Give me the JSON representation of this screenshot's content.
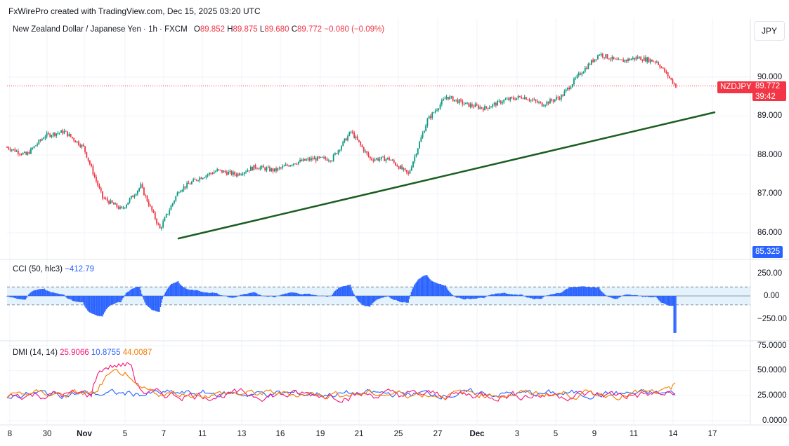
{
  "header": {
    "attribution": "FxWirePro created with TradingView.com, Dec 15, 2025 03:20 UTC"
  },
  "legend": {
    "title": "New Zealand Dollar / Japanese Yen · 1h · FXCM",
    "o_label": "O",
    "o_value": "89.852",
    "h_label": "H",
    "h_value": "89.875",
    "l_label": "L",
    "l_value": "89.680",
    "c_label": "C",
    "c_value": "89.772",
    "change": "−0.080 (−0.09%)"
  },
  "currency": "JPY",
  "price_tags": {
    "symbol": "NZDJPY",
    "last": "89.772",
    "countdown": "39:42",
    "low_marker": "85.325"
  },
  "cci": {
    "label": "CCI (50, hlc3)",
    "value": "−412.79",
    "ticks": [
      "250.00",
      "0.00",
      "−250.00"
    ]
  },
  "dmi": {
    "label": "DMI (14, 14)",
    "plus_di": "25.9066",
    "minus_di": "10.8755",
    "adx": "44.0087",
    "ticks": [
      "75.0000",
      "50.0000",
      "25.0000",
      "0.0000"
    ]
  },
  "price_ticks": [
    "90.000",
    "89.000",
    "88.000",
    "87.000",
    "86.000"
  ],
  "x_ticks": [
    {
      "label": "8"
    },
    {
      "label": "30"
    },
    {
      "label": "Nov",
      "bold": true
    },
    {
      "label": "5"
    },
    {
      "label": "7"
    },
    {
      "label": "11"
    },
    {
      "label": "13"
    },
    {
      "label": "16"
    },
    {
      "label": "19"
    },
    {
      "label": "21"
    },
    {
      "label": "25"
    },
    {
      "label": "27"
    },
    {
      "label": "Dec",
      "bold": true
    },
    {
      "label": "3"
    },
    {
      "label": "5"
    },
    {
      "label": "9"
    },
    {
      "label": "11"
    },
    {
      "label": "14"
    },
    {
      "label": "17"
    }
  ],
  "colors": {
    "up": "#089981",
    "down": "#f23645",
    "trendline": "#1b5e20",
    "cci": "#2962ff",
    "cci_band": "#e3f2fd",
    "plus_di": "#2962ff",
    "minus_di": "#f7167a",
    "adx": "#f57c00"
  },
  "chart_data": {
    "type": "line",
    "title": "New Zealand Dollar / Japanese Yen · 1h · FXCM",
    "xlabel": "",
    "ylabel": "",
    "ylim": [
      85.6,
      90.9
    ],
    "x": [
      "Oct 28",
      "Oct 29",
      "Oct 30",
      "Oct 31",
      "Nov 3",
      "Nov 4",
      "Nov 5",
      "Nov 6",
      "Nov 7",
      "Nov 10",
      "Nov 11",
      "Nov 12",
      "Nov 13",
      "Nov 14",
      "Nov 16",
      "Nov 17",
      "Nov 18",
      "Nov 19",
      "Nov 20",
      "Nov 21",
      "Nov 24",
      "Nov 25",
      "Nov 26",
      "Nov 27",
      "Nov 28",
      "Dec 1",
      "Dec 2",
      "Dec 3",
      "Dec 4",
      "Dec 5",
      "Dec 8",
      "Dec 9",
      "Dec 10",
      "Dec 11",
      "Dec 12",
      "Dec 14"
    ],
    "series": [
      {
        "name": "NZDJPY close",
        "values": [
          88.2,
          88.0,
          88.5,
          88.6,
          88.2,
          86.9,
          86.6,
          87.2,
          86.1,
          87.1,
          87.4,
          87.6,
          87.5,
          87.7,
          87.6,
          87.8,
          87.9,
          87.9,
          88.6,
          87.9,
          87.9,
          87.5,
          88.9,
          89.5,
          89.3,
          89.2,
          89.4,
          89.5,
          89.3,
          89.5,
          90.1,
          90.6,
          90.4,
          90.5,
          90.4,
          89.772
        ]
      }
    ],
    "trendline": {
      "from": {
        "x": "Nov 7",
        "y": 85.85
      },
      "to": {
        "x": "Dec 17",
        "y": 89.1
      }
    },
    "last_price": 89.772,
    "panes": [
      {
        "name": "CCI (50, hlc3)",
        "type": "histogram",
        "last": -412.79,
        "ylim": [
          -450,
          330
        ],
        "bands": [
          -100,
          100
        ]
      },
      {
        "name": "DMI (14, 14)",
        "type": "line",
        "ylim": [
          0,
          75
        ],
        "last": {
          "plus_di": 25.9066,
          "minus_di": 10.8755,
          "adx": 44.0087
        }
      }
    ]
  }
}
